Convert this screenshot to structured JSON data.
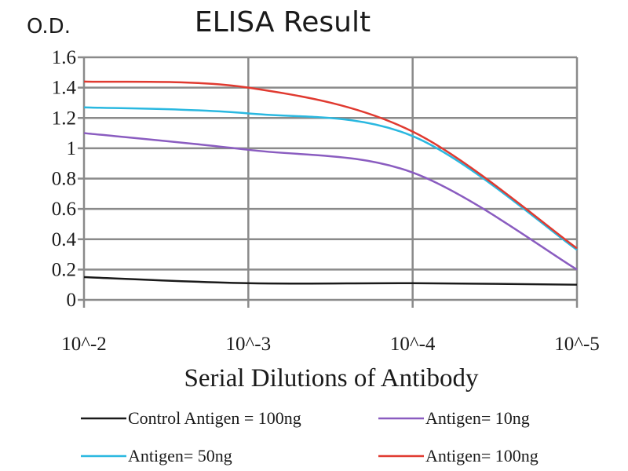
{
  "chart_data": {
    "type": "line",
    "title": "ELISA Result",
    "ylabel": "O.D.",
    "xlabel": "Serial Dilutions of Antibody",
    "categories": [
      "10^-2",
      "10^-3",
      "10^-4",
      "10^-5"
    ],
    "ylim": [
      0,
      1.6
    ],
    "yticks": [
      "0",
      "0.2",
      "0.4",
      "0.6",
      "0.8",
      "1",
      "1.2",
      "1.4",
      "1.6"
    ],
    "grid": true,
    "legend_position": "bottom",
    "series": [
      {
        "name": "Control Antigen = 100ng",
        "color": "#1a1a1a",
        "values": [
          0.15,
          0.11,
          0.11,
          0.1
        ]
      },
      {
        "name": "Antigen= 10ng",
        "color": "#8a5cc0",
        "values": [
          1.1,
          0.99,
          0.84,
          0.2
        ]
      },
      {
        "name": "Antigen= 50ng",
        "color": "#2ab8e0",
        "values": [
          1.27,
          1.23,
          1.08,
          0.33
        ]
      },
      {
        "name": "Antigen= 100ng",
        "color": "#e03a30",
        "values": [
          1.44,
          1.4,
          1.11,
          0.34
        ]
      }
    ]
  }
}
